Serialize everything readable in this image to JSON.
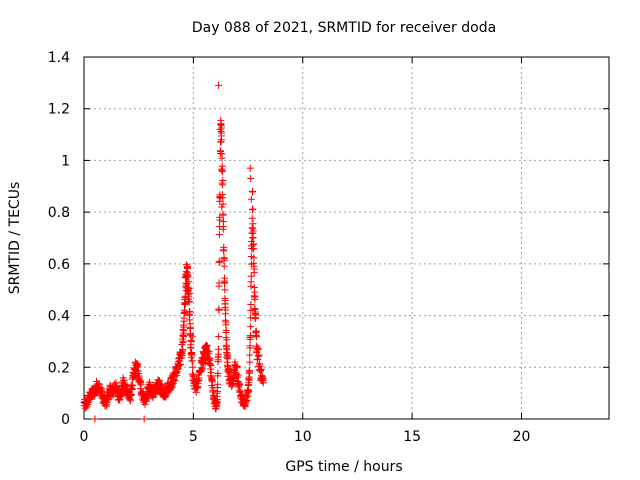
{
  "chart_data": {
    "type": "scatter",
    "title": "Day 088 of 2021, SRMTID for receiver doda",
    "xlabel": "GPS time / hours",
    "ylabel": "SRMTID / TECUs",
    "xlim": [
      0,
      24
    ],
    "ylim": [
      0,
      1.4
    ],
    "x_ticks": [
      0,
      5,
      10,
      15,
      20
    ],
    "x_tick_labels": [
      "0",
      "5",
      "10",
      "15",
      "20"
    ],
    "y_ticks": [
      0,
      0.2,
      0.4,
      0.6,
      0.8,
      1.0,
      1.2,
      1.4
    ],
    "y_tick_labels": [
      "0",
      "0.2",
      "0.4",
      "0.6",
      "0.8",
      "1",
      "1.2",
      "1.4"
    ],
    "grid": true,
    "marker": "+",
    "color": "#ff0000",
    "anchors": [
      [
        0.0,
        0.06
      ],
      [
        0.1,
        0.05
      ],
      [
        0.2,
        0.08
      ],
      [
        0.3,
        0.09
      ],
      [
        0.4,
        0.1
      ],
      [
        0.5,
        0.11
      ],
      [
        0.6,
        0.13
      ],
      [
        0.7,
        0.12
      ],
      [
        0.8,
        0.1
      ],
      [
        0.9,
        0.07
      ],
      [
        1.0,
        0.06
      ],
      [
        1.1,
        0.09
      ],
      [
        1.2,
        0.11
      ],
      [
        1.3,
        0.1
      ],
      [
        1.4,
        0.13
      ],
      [
        1.5,
        0.11
      ],
      [
        1.6,
        0.09
      ],
      [
        1.7,
        0.1
      ],
      [
        1.8,
        0.14
      ],
      [
        1.9,
        0.12
      ],
      [
        2.0,
        0.1
      ],
      [
        2.1,
        0.08
      ],
      [
        2.2,
        0.13
      ],
      [
        2.3,
        0.18
      ],
      [
        2.4,
        0.2
      ],
      [
        2.5,
        0.16
      ],
      [
        2.6,
        0.12
      ],
      [
        2.7,
        0.09
      ],
      [
        2.8,
        0.07
      ],
      [
        2.9,
        0.1
      ],
      [
        3.0,
        0.12
      ],
      [
        3.1,
        0.11
      ],
      [
        3.2,
        0.1
      ],
      [
        3.3,
        0.12
      ],
      [
        3.4,
        0.13
      ],
      [
        3.5,
        0.12
      ],
      [
        3.6,
        0.11
      ],
      [
        3.7,
        0.1
      ],
      [
        3.8,
        0.12
      ],
      [
        3.9,
        0.13
      ],
      [
        4.0,
        0.14
      ],
      [
        4.1,
        0.16
      ],
      [
        4.2,
        0.18
      ],
      [
        4.3,
        0.2
      ],
      [
        4.4,
        0.23
      ],
      [
        4.5,
        0.28
      ],
      [
        4.55,
        0.34
      ],
      [
        4.6,
        0.42
      ],
      [
        4.65,
        0.52
      ],
      [
        4.7,
        0.57
      ],
      [
        4.75,
        0.54
      ],
      [
        4.8,
        0.46
      ],
      [
        4.85,
        0.36
      ],
      [
        4.9,
        0.26
      ],
      [
        5.0,
        0.15
      ],
      [
        5.1,
        0.12
      ],
      [
        5.2,
        0.14
      ],
      [
        5.3,
        0.19
      ],
      [
        5.4,
        0.22
      ],
      [
        5.5,
        0.24
      ],
      [
        5.6,
        0.26
      ],
      [
        5.7,
        0.24
      ],
      [
        5.8,
        0.18
      ],
      [
        5.9,
        0.1
      ],
      [
        6.0,
        0.06
      ],
      [
        6.05,
        0.05
      ],
      [
        6.1,
        0.09
      ],
      [
        6.15,
        0.3
      ],
      [
        6.2,
        0.78
      ],
      [
        6.25,
        1.08
      ],
      [
        6.3,
        1.05
      ],
      [
        6.35,
        0.85
      ],
      [
        6.4,
        0.62
      ],
      [
        6.45,
        0.45
      ],
      [
        6.5,
        0.32
      ],
      [
        6.55,
        0.24
      ],
      [
        6.6,
        0.18
      ],
      [
        6.7,
        0.14
      ],
      [
        6.8,
        0.16
      ],
      [
        6.9,
        0.2
      ],
      [
        7.0,
        0.18
      ],
      [
        7.1,
        0.12
      ],
      [
        7.2,
        0.08
      ],
      [
        7.3,
        0.06
      ],
      [
        7.4,
        0.07
      ],
      [
        7.5,
        0.1
      ],
      [
        7.55,
        0.16
      ],
      [
        7.6,
        0.3
      ],
      [
        7.65,
        0.6
      ],
      [
        7.7,
        0.85
      ],
      [
        7.75,
        0.62
      ],
      [
        7.8,
        0.48
      ],
      [
        7.85,
        0.36
      ],
      [
        7.9,
        0.27
      ],
      [
        8.0,
        0.22
      ],
      [
        8.1,
        0.17
      ],
      [
        8.2,
        0.14
      ]
    ],
    "extra_points": [
      [
        6.15,
        1.29
      ],
      [
        6.22,
        1.12
      ],
      [
        6.2,
        0.78
      ],
      [
        6.28,
        1.08
      ],
      [
        6.3,
        0.82
      ],
      [
        7.6,
        0.97
      ],
      [
        7.62,
        0.93
      ],
      [
        7.65,
        0.85
      ],
      [
        7.7,
        0.7
      ],
      [
        4.72,
        0.59
      ],
      [
        4.68,
        0.57
      ],
      [
        4.75,
        0.55
      ],
      [
        5.55,
        0.28
      ],
      [
        5.6,
        0.27
      ],
      [
        2.35,
        0.22
      ],
      [
        2.45,
        0.21
      ],
      [
        0.5,
        0.0
      ],
      [
        2.75,
        0.0
      ],
      [
        4.9,
        0.3
      ],
      [
        4.95,
        0.32
      ]
    ]
  }
}
